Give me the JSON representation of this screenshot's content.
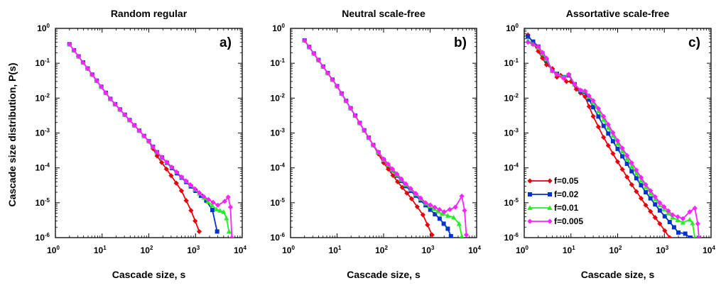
{
  "figure": {
    "ylabel": "Cascade size distribution, P(s)",
    "x_tick_base": "10",
    "y_tick_base": "10"
  },
  "legend": {
    "entries": [
      {
        "label": "f=0.05",
        "color": "#e8000b",
        "marker": "diamond"
      },
      {
        "label": "f=0.02",
        "color": "#0033cc",
        "marker": "square"
      },
      {
        "label": "f=0.01",
        "color": "#22ee22",
        "marker": "triangle"
      },
      {
        "label": "f=0.005",
        "color": "#ff22ff",
        "marker": "diamond"
      }
    ]
  },
  "chart_data": [
    {
      "type": "line",
      "title": "Random regular",
      "panel_label": "a)",
      "xlabel": "Cascade size, s",
      "ylabel": "Cascade size distribution, P(s)",
      "xscale": "log",
      "yscale": "log",
      "xlim_exp": [
        0,
        4
      ],
      "ylim_exp": [
        -6,
        0
      ],
      "x_tick_exps": [
        0,
        1,
        2,
        3,
        4
      ],
      "y_tick_exps": [
        -6,
        -5,
        -4,
        -3,
        -2,
        -1,
        0
      ],
      "shared_head": [
        [
          2,
          0.35
        ],
        [
          15,
          0.0095
        ],
        [
          100,
          0.00058
        ]
      ],
      "series": [
        {
          "name": "f=0.05",
          "color": "#e8000b",
          "marker": "diamond",
          "points": [
            [
              150,
              0.00022
            ],
            [
              300,
              6e-05
            ],
            [
              500,
              2.2e-05
            ],
            [
              800,
              6e-06
            ],
            [
              1200,
              1.5e-06
            ]
          ]
        },
        {
          "name": "f=0.02",
          "color": "#0033cc",
          "marker": "square",
          "points": [
            [
              150,
              0.00028
            ],
            [
              400,
              7e-05
            ],
            [
              1000,
              2.2e-05
            ],
            [
              1700,
              1.15e-05
            ],
            [
              2300,
              6.2e-06
            ],
            [
              2900,
              1.5e-06
            ]
          ]
        },
        {
          "name": "f=0.01",
          "color": "#22ee22",
          "marker": "triangle",
          "points": [
            [
              150,
              0.00028
            ],
            [
              500,
              5.5e-05
            ],
            [
              1500,
              1.4e-05
            ],
            [
              2800,
              6.5e-06
            ],
            [
              4000,
              5.5e-06
            ],
            [
              4600,
              3.6e-06
            ],
            [
              5200,
              1.5e-06
            ]
          ]
        },
        {
          "name": "f=0.005",
          "color": "#ff22ff",
          "marker": "diamond",
          "points": [
            [
              150,
              0.00028
            ],
            [
              500,
              5.5e-05
            ],
            [
              1500,
              1.5e-05
            ],
            [
              3000,
              8.5e-06
            ],
            [
              4200,
              1.1e-05
            ],
            [
              5000,
              1.45e-05
            ],
            [
              5600,
              7.5e-06
            ],
            [
              6000,
              1e-06
            ]
          ]
        }
      ]
    },
    {
      "type": "line",
      "title": "Neutral scale-free",
      "panel_label": "b)",
      "xlabel": "Cascade size, s",
      "ylabel": "",
      "xscale": "log",
      "yscale": "log",
      "xlim_exp": [
        0,
        4
      ],
      "ylim_exp": [
        -6,
        0
      ],
      "x_tick_exps": [
        0,
        1,
        2,
        3,
        4
      ],
      "y_tick_exps": [
        -6,
        -5,
        -4,
        -3,
        -2,
        -1,
        0
      ],
      "shared_head": [
        [
          2,
          0.45
        ],
        [
          10,
          0.022
        ],
        [
          60,
          0.00045
        ]
      ],
      "series": [
        {
          "name": "f=0.05",
          "color": "#e8000b",
          "marker": "diamond",
          "points": [
            [
              100,
              0.00014
            ],
            [
              200,
              4e-05
            ],
            [
              400,
              1.3e-05
            ],
            [
              700,
              4.5e-06
            ],
            [
              1100,
              1.2e-06
            ]
          ]
        },
        {
          "name": "f=0.02",
          "color": "#0033cc",
          "marker": "square",
          "points": [
            [
              100,
              0.00017
            ],
            [
              300,
              3e-05
            ],
            [
              800,
              8.5e-06
            ],
            [
              1600,
              3.5e-06
            ],
            [
              2400,
              1.8e-06
            ],
            [
              2800,
              1.1e-06
            ]
          ]
        },
        {
          "name": "f=0.01",
          "color": "#22ee22",
          "marker": "triangle",
          "points": [
            [
              100,
              0.00017
            ],
            [
              300,
              3.3e-05
            ],
            [
              800,
              9.5e-06
            ],
            [
              1800,
              4.8e-06
            ],
            [
              3200,
              3.8e-06
            ],
            [
              4200,
              2.5e-06
            ],
            [
              4800,
              1.1e-06
            ]
          ]
        },
        {
          "name": "f=0.005",
          "color": "#ff22ff",
          "marker": "diamond",
          "points": [
            [
              100,
              0.00018
            ],
            [
              300,
              3.5e-05
            ],
            [
              800,
              1e-05
            ],
            [
              2000,
              5.5e-06
            ],
            [
              3500,
              7.5e-06
            ],
            [
              4800,
              1.55e-05
            ],
            [
              5500,
              6e-06
            ],
            [
              6000,
              1.2e-06
            ]
          ]
        }
      ]
    },
    {
      "type": "line",
      "title": "Assortative scale-free",
      "panel_label": "c)",
      "xlabel": "Cascade size, s",
      "ylabel": "",
      "xscale": "log",
      "yscale": "log",
      "xlim_exp": [
        0,
        4
      ],
      "ylim_exp": [
        -6,
        0
      ],
      "x_tick_exps": [
        0,
        1,
        2,
        3,
        4
      ],
      "y_tick_exps": [
        -6,
        -5,
        -4,
        -3,
        -2,
        -1,
        0
      ],
      "shared_head": null,
      "series": [
        {
          "name": "f=0.05",
          "color": "#e8000b",
          "marker": "diamond",
          "points": [
            [
              1.2,
              0.65
            ],
            [
              2,
              0.22
            ],
            [
              3,
              0.09
            ],
            [
              4,
              0.07
            ],
            [
              5,
              0.04
            ],
            [
              6,
              0.045
            ],
            [
              8,
              0.03
            ],
            [
              10,
              0.03
            ],
            [
              13,
              0.018
            ],
            [
              16,
              0.014
            ],
            [
              20,
              0.011
            ],
            [
              30,
              0.003
            ],
            [
              50,
              0.00075
            ],
            [
              100,
              0.00015
            ],
            [
              200,
              3.3e-05
            ],
            [
              400,
              8.5e-06
            ],
            [
              800,
              2.5e-06
            ],
            [
              1300,
              1e-06
            ]
          ]
        },
        {
          "name": "f=0.02",
          "color": "#0033cc",
          "marker": "square",
          "points": [
            [
              1.2,
              0.58
            ],
            [
              2,
              0.3
            ],
            [
              3,
              0.12
            ],
            [
              4,
              0.06
            ],
            [
              5,
              0.05
            ],
            [
              7,
              0.04
            ],
            [
              9,
              0.045
            ],
            [
              12,
              0.025
            ],
            [
              16,
              0.016
            ],
            [
              20,
              0.015
            ],
            [
              30,
              0.0055
            ],
            [
              50,
              0.0016
            ],
            [
              100,
              0.00035
            ],
            [
              200,
              8e-05
            ],
            [
              400,
              2e-05
            ],
            [
              800,
              6e-06
            ],
            [
              1300,
              2.8e-06
            ],
            [
              2000,
              1.4e-06
            ],
            [
              2800,
              1.3e-06
            ],
            [
              3500,
              1e-06
            ]
          ]
        },
        {
          "name": "f=0.01",
          "color": "#22ee22",
          "marker": "triangle",
          "points": [
            [
              1.2,
              0.45
            ],
            [
              2,
              0.28
            ],
            [
              3,
              0.13
            ],
            [
              4,
              0.06
            ],
            [
              5,
              0.05
            ],
            [
              7,
              0.04
            ],
            [
              9,
              0.048
            ],
            [
              12,
              0.025
            ],
            [
              16,
              0.017
            ],
            [
              20,
              0.016
            ],
            [
              30,
              0.0075
            ],
            [
              50,
              0.0024
            ],
            [
              100,
              0.0005
            ],
            [
              200,
              0.00011
            ],
            [
              400,
              2.8e-05
            ],
            [
              800,
              8.5e-06
            ],
            [
              1500,
              3.8e-06
            ],
            [
              2500,
              2.7e-06
            ],
            [
              3500,
              3.3e-06
            ],
            [
              4000,
              2.6e-06
            ],
            [
              4500,
              1e-06
            ]
          ]
        },
        {
          "name": "f=0.005",
          "color": "#ff22ff",
          "marker": "diamond",
          "points": [
            [
              1.2,
              0.4
            ],
            [
              2,
              0.3
            ],
            [
              3,
              0.14
            ],
            [
              4,
              0.06
            ],
            [
              5,
              0.048
            ],
            [
              7,
              0.037
            ],
            [
              9,
              0.048
            ],
            [
              12,
              0.025
            ],
            [
              16,
              0.017
            ],
            [
              20,
              0.016
            ],
            [
              30,
              0.0085
            ],
            [
              50,
              0.003
            ],
            [
              100,
              0.0006
            ],
            [
              200,
              0.00014
            ],
            [
              400,
              3.3e-05
            ],
            [
              800,
              1e-05
            ],
            [
              1500,
              4.5e-06
            ],
            [
              2500,
              3.5e-06
            ],
            [
              3500,
              5.5e-06
            ],
            [
              4500,
              7e-06
            ],
            [
              5200,
              2.5e-06
            ],
            [
              5500,
              1e-06
            ]
          ]
        }
      ]
    }
  ]
}
